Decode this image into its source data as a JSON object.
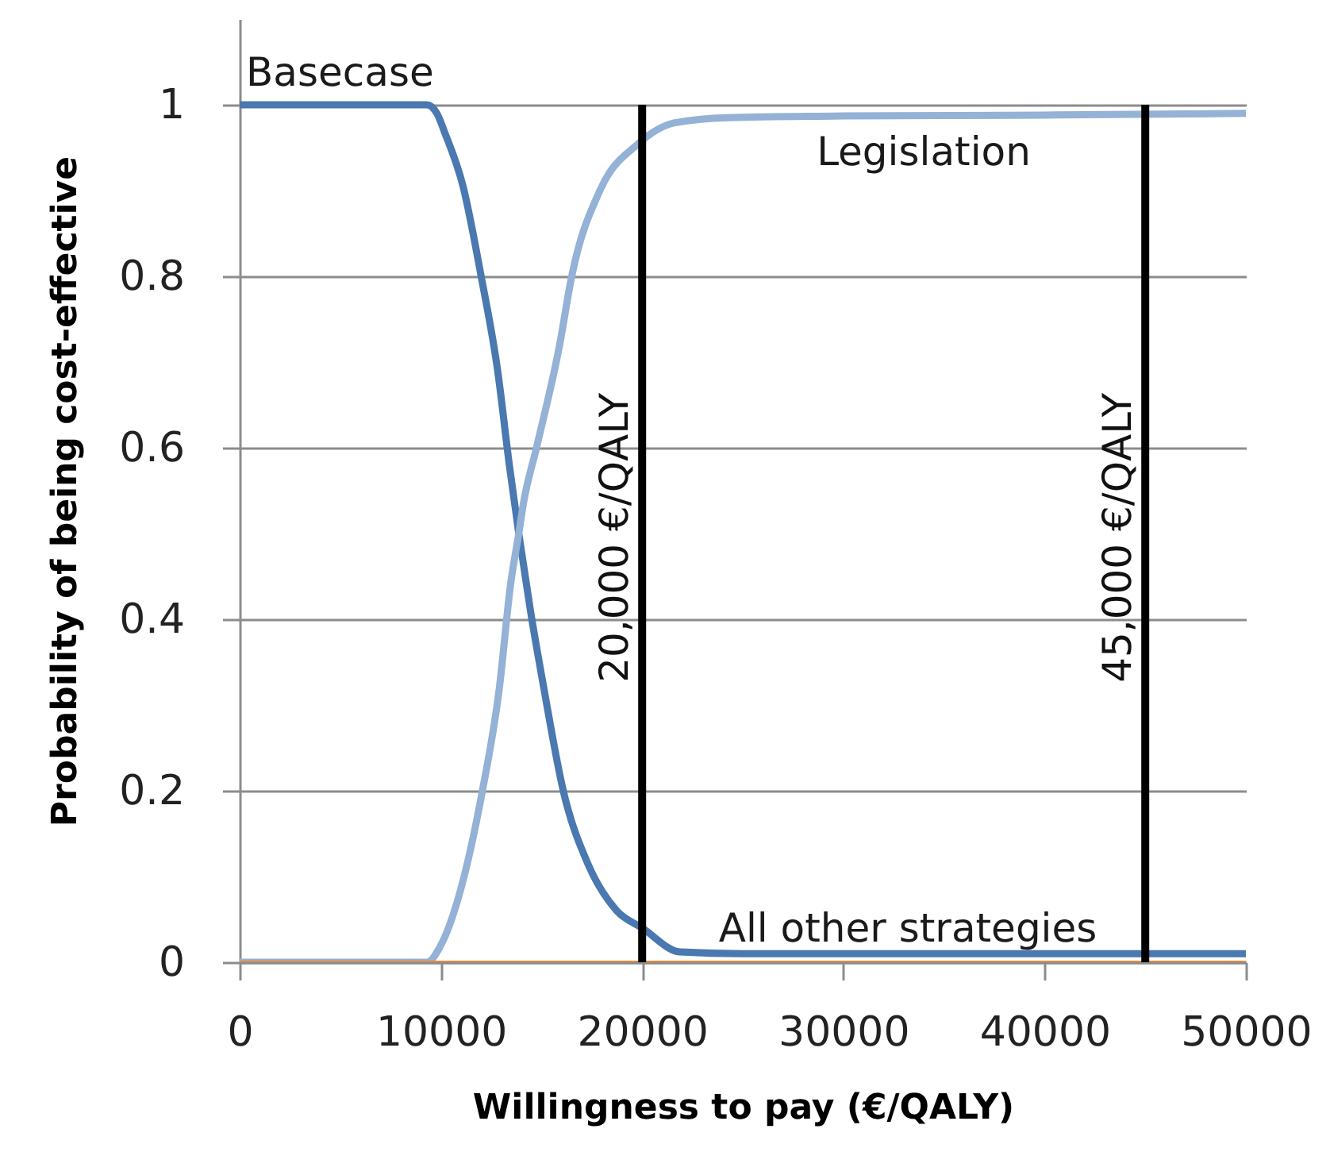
{
  "chart_data": {
    "type": "line",
    "xlabel": "Willingness to pay (€/QALY)",
    "ylabel": "Probability of being cost-effective",
    "xlim": [
      0,
      50000
    ],
    "xticks": [
      0,
      10000,
      20000,
      30000,
      40000,
      50000
    ],
    "ylim": [
      0,
      1.1
    ],
    "yticks": [
      0,
      0.2,
      0.4,
      0.6,
      0.8,
      1
    ],
    "grid": "y",
    "series": [
      {
        "name": "Basecase",
        "color": "#4a78b0",
        "x": [
          0,
          5000,
          9300,
          9800,
          10200,
          11100,
          12000,
          12820,
          13400,
          13870,
          14450,
          15120,
          16100,
          17300,
          18740,
          20000,
          21880,
          25000,
          30000,
          40000,
          50000
        ],
        "values": [
          1,
          1,
          1,
          0.99,
          0.967,
          0.905,
          0.8,
          0.69,
          0.58,
          0.5,
          0.41,
          0.319,
          0.198,
          0.115,
          0.06,
          0.04,
          0.012,
          0.01,
          0.01,
          0.01,
          0.01
        ]
      },
      {
        "name": "Legislation",
        "color": "#94b1d6",
        "x": [
          0,
          5000,
          9300,
          10000,
          10840,
          12030,
          12900,
          13470,
          13870,
          14100,
          14750,
          15900,
          16500,
          17900,
          19780,
          21620,
          24250,
          30000,
          40000,
          50000
        ],
        "values": [
          0,
          0,
          0,
          0.02,
          0.073,
          0.196,
          0.319,
          0.442,
          0.5,
          0.535,
          0.6,
          0.72,
          0.8,
          0.9,
          0.954,
          0.979,
          0.985,
          0.987,
          0.988,
          0.99
        ]
      },
      {
        "name": "All other strategies",
        "color": "#e48b3f",
        "x": [
          0,
          50000
        ],
        "values": [
          0,
          0
        ]
      }
    ],
    "ref_lines": [
      {
        "axis": "x",
        "value": 20000,
        "label": "20,000 €/QALY",
        "color": "#000000"
      },
      {
        "axis": "x",
        "value": 45000,
        "label": "45,000 €/QALY",
        "color": "#000000"
      }
    ]
  }
}
